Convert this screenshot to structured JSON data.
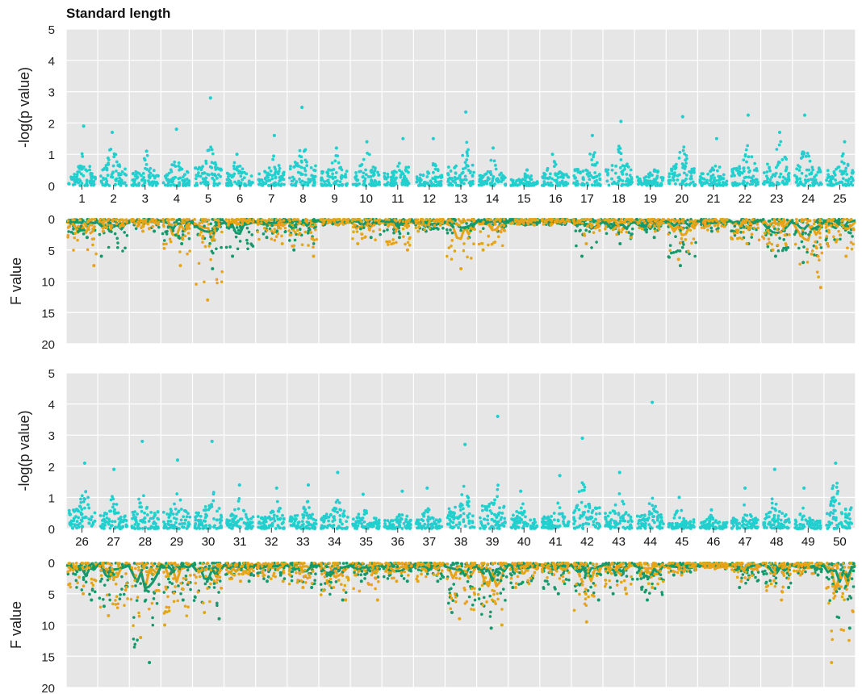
{
  "chart_data": {
    "type": "scatter",
    "title": "Standard length",
    "colors": {
      "pvalue": "#22cfcf",
      "fvalue_series_a": "#14996a",
      "fvalue_series_b": "#e6a417",
      "panel_bg": "#e6e6e6",
      "grid": "#ffffff"
    },
    "grid": true,
    "pvalue_axis": {
      "label": "-log(p value)",
      "range": [
        0,
        5
      ],
      "ticks": [
        "0",
        "1",
        "2",
        "3",
        "4",
        "5"
      ]
    },
    "fvalue_axis": {
      "label": "F value",
      "range": [
        0,
        20
      ],
      "inverted": true,
      "ticks": [
        "0",
        "5",
        "10",
        "15",
        "20"
      ]
    },
    "rows": [
      {
        "chromosomes": [
          "1",
          "2",
          "3",
          "4",
          "5",
          "6",
          "7",
          "8",
          "9",
          "10",
          "11",
          "12",
          "13",
          "14",
          "15",
          "16",
          "17",
          "18",
          "19",
          "20",
          "21",
          "22",
          "23",
          "24",
          "25"
        ],
        "pvalue_peaks": [
          1.9,
          1.7,
          1.1,
          1.8,
          2.8,
          1.0,
          1.6,
          2.5,
          1.2,
          1.4,
          1.5,
          1.5,
          2.35,
          1.2,
          0.5,
          1.0,
          1.6,
          2.05,
          0.5,
          2.2,
          1.5,
          2.25,
          1.7,
          2.25,
          1.4
        ],
        "pvalue_typical": [
          0.5,
          0.6,
          0.45,
          0.45,
          0.6,
          0.45,
          0.45,
          0.7,
          0.5,
          0.55,
          0.45,
          0.35,
          0.65,
          0.4,
          0.2,
          0.4,
          0.55,
          0.65,
          0.3,
          0.6,
          0.4,
          0.6,
          0.75,
          0.6,
          0.5
        ],
        "fvalue_peaks_a": [
          3,
          6,
          2,
          4,
          8,
          6,
          3,
          5,
          1,
          3,
          3,
          2,
          3,
          2,
          1,
          1,
          6,
          4,
          3,
          7.5,
          2,
          4,
          6,
          7,
          4
        ],
        "fvalue_peaks_b": [
          7.5,
          2,
          2,
          7.5,
          13,
          1,
          4,
          6,
          1,
          4,
          5,
          2,
          8,
          5,
          1,
          1,
          4,
          3,
          2,
          6.5,
          2,
          4,
          5,
          11,
          6
        ]
      },
      {
        "chromosomes": [
          "26",
          "27",
          "28",
          "29",
          "30",
          "31",
          "32",
          "33",
          "34",
          "35",
          "36",
          "37",
          "38",
          "39",
          "40",
          "41",
          "42",
          "43",
          "44",
          "45",
          "46",
          "47",
          "48",
          "49",
          "50"
        ],
        "pvalue_peaks": [
          2.1,
          1.9,
          2.8,
          2.2,
          2.8,
          1.4,
          1.3,
          1.4,
          1.8,
          1.1,
          1.2,
          1.3,
          2.7,
          3.6,
          1.2,
          1.7,
          2.9,
          1.8,
          4.05,
          1.0,
          0.6,
          1.3,
          1.9,
          1.3,
          2.1
        ],
        "pvalue_typical": [
          0.6,
          0.5,
          0.55,
          0.55,
          0.6,
          0.45,
          0.4,
          0.45,
          0.5,
          0.35,
          0.3,
          0.3,
          0.7,
          0.75,
          0.4,
          0.4,
          0.75,
          0.5,
          0.45,
          0.3,
          0.2,
          0.35,
          0.5,
          0.3,
          0.75
        ],
        "fvalue_peaks_a": [
          6,
          7,
          16,
          6,
          9,
          3,
          3,
          4,
          6,
          3,
          3,
          3,
          8,
          10.5,
          4,
          5,
          6,
          5,
          6,
          2,
          1,
          4,
          4,
          2,
          10.5
        ],
        "fvalue_peaks_b": [
          5,
          8.5,
          12,
          10,
          8,
          3,
          3,
          4,
          6,
          6,
          3,
          3,
          9,
          10,
          4,
          3,
          9.5,
          5,
          4,
          2,
          1,
          3,
          6,
          2,
          16
        ]
      }
    ]
  }
}
